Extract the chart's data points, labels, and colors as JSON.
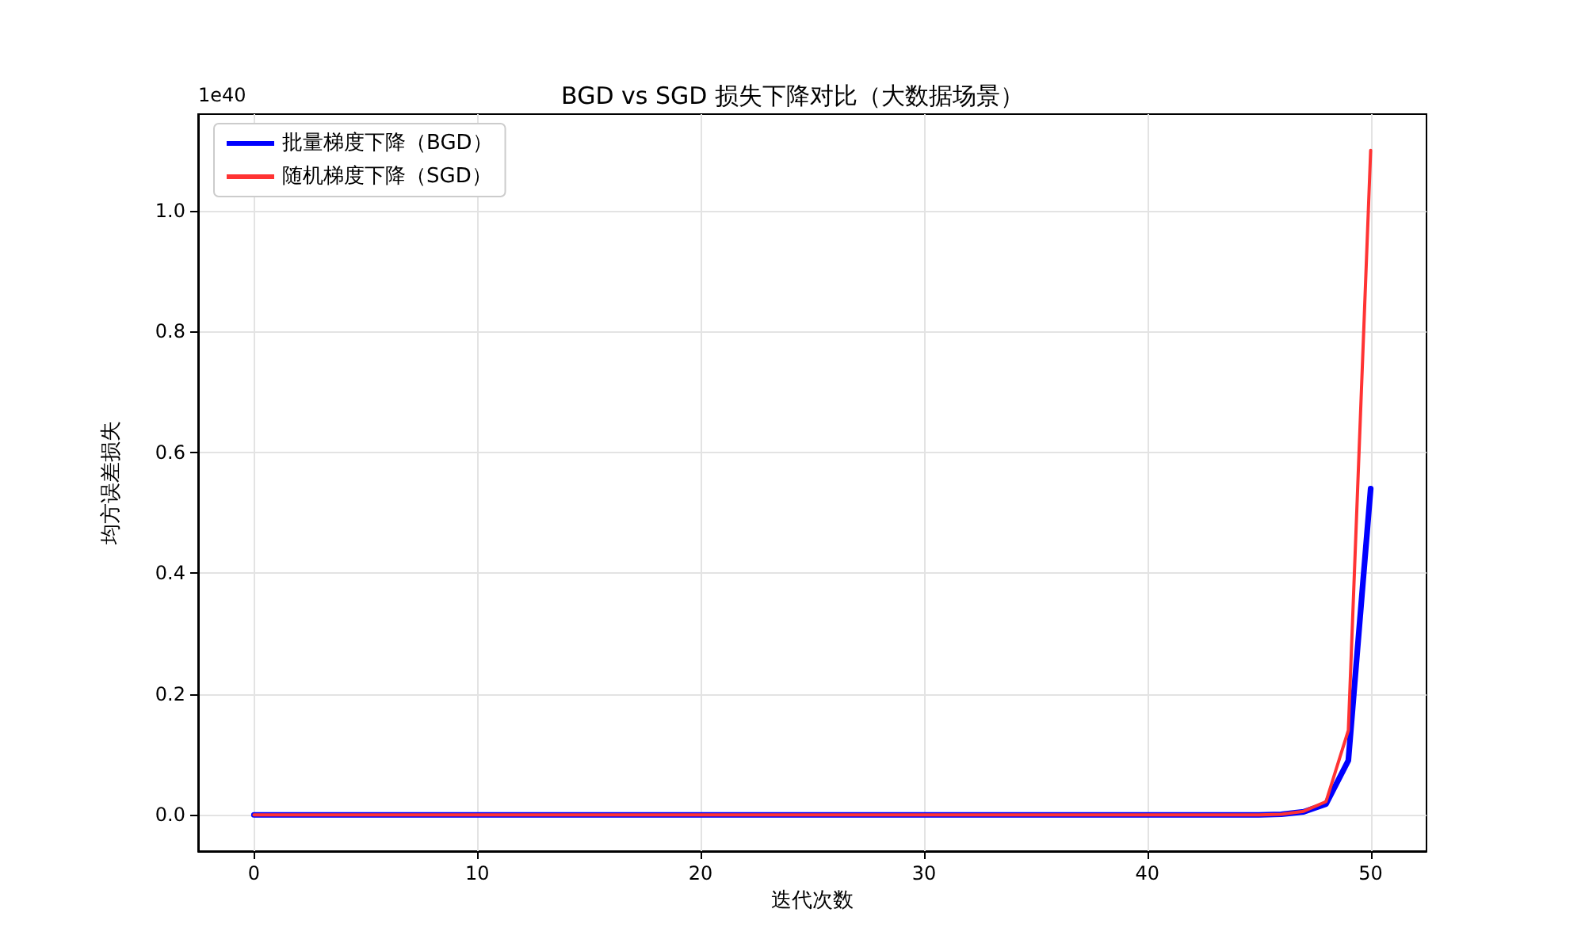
{
  "chart_data": {
    "type": "line",
    "title": "BGD vs SGD 损失下降对比（大数据场景）",
    "xlabel": "迭代次数",
    "ylabel": "均方误差损失",
    "annotations": [
      "1e40"
    ],
    "x": [
      0,
      1,
      2,
      3,
      4,
      5,
      6,
      7,
      8,
      9,
      10,
      11,
      12,
      13,
      14,
      15,
      16,
      17,
      18,
      19,
      20,
      21,
      22,
      23,
      24,
      25,
      26,
      27,
      28,
      29,
      30,
      31,
      32,
      33,
      34,
      35,
      36,
      37,
      38,
      39,
      40,
      41,
      42,
      43,
      44,
      45,
      46,
      47,
      48,
      49,
      50
    ],
    "series": [
      {
        "name": "批量梯度下降（BGD）",
        "color": "#0000ff",
        "values": [
          0,
          0,
          0,
          0,
          0,
          0,
          0,
          0,
          0,
          0,
          0,
          0,
          0,
          0,
          0,
          0,
          0,
          0,
          0,
          0,
          0,
          0,
          0,
          0,
          0,
          0,
          0,
          0,
          0,
          0,
          0,
          0,
          0,
          0,
          0,
          0,
          0,
          0,
          0,
          0,
          0,
          0,
          0,
          0,
          0,
          0,
          0.001,
          0.005,
          0.018,
          0.09,
          0.54
        ]
      },
      {
        "name": "随机梯度下降（SGD）",
        "color": "#ff3333",
        "values": [
          0,
          0,
          0,
          0,
          0,
          0,
          0,
          0,
          0,
          0,
          0,
          0,
          0,
          0,
          0,
          0,
          0,
          0,
          0,
          0,
          0,
          0,
          0,
          0,
          0,
          0,
          0,
          0,
          0,
          0,
          0,
          0,
          0,
          0,
          0,
          0,
          0,
          0,
          0,
          0,
          0,
          0,
          0,
          0,
          0,
          0,
          0.001,
          0.006,
          0.022,
          0.14,
          1.1
        ]
      }
    ],
    "xlim": [
      -2.5,
      52.5
    ],
    "xticks": [
      0,
      10,
      20,
      30,
      40,
      50
    ],
    "ylim": [
      -0.06,
      1.16
    ],
    "yticks": [
      {
        "value": 0,
        "label": "0.0"
      },
      {
        "value": 0.2,
        "label": "0.2"
      },
      {
        "value": 0.4,
        "label": "0.4"
      },
      {
        "value": 0.6,
        "label": "0.6"
      },
      {
        "value": 0.8,
        "label": "0.8"
      },
      {
        "value": 1,
        "label": "1.0"
      }
    ],
    "grid": true,
    "legend": "top left",
    "marker": "none",
    "line_style": "solid"
  }
}
